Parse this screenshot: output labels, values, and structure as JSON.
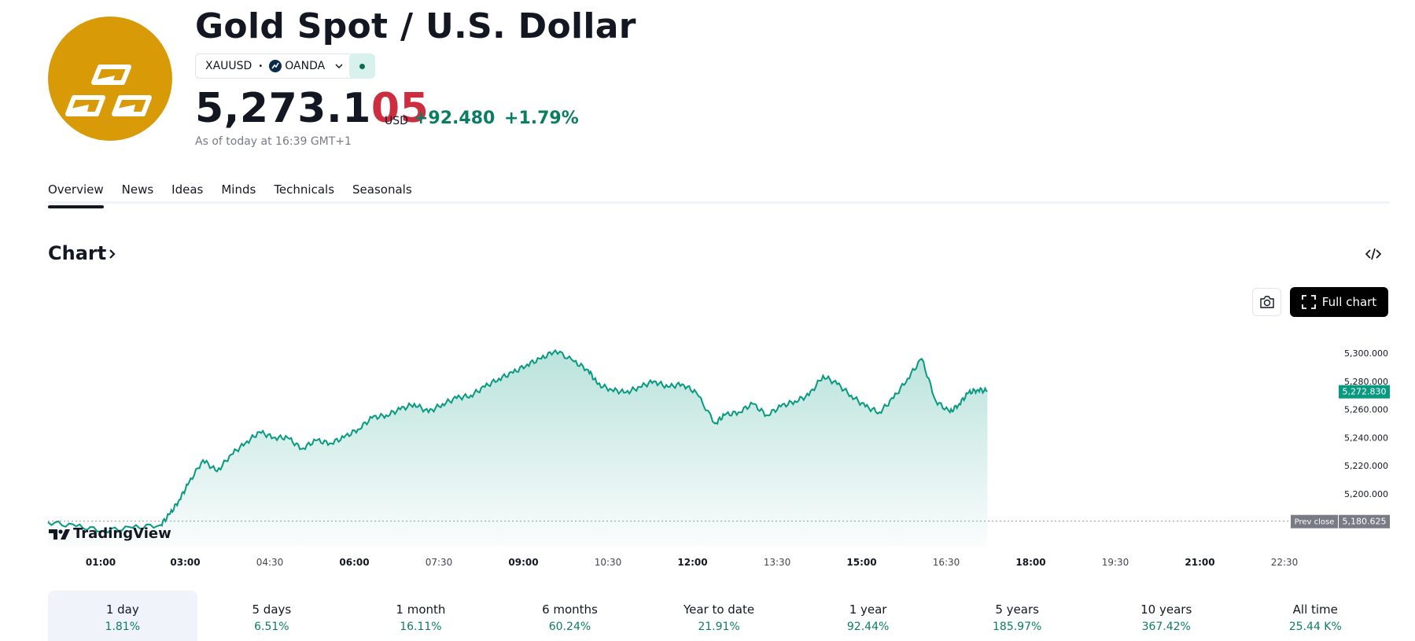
{
  "header": {
    "title": "Gold Spot / U.S. Dollar",
    "symbol": "XAUUSD",
    "exchange": "OANDA",
    "logo_icon": "gold-bars-icon",
    "price_main": "5,273.1",
    "price_tail": "05",
    "currency": "USD",
    "change": "+92.480",
    "change_pct": "+1.79%",
    "as_of": "As of today at 16:39 GMT+1"
  },
  "tabs": [
    {
      "label": "Overview",
      "active": true
    },
    {
      "label": "News"
    },
    {
      "label": "Ideas"
    },
    {
      "label": "Minds"
    },
    {
      "label": "Technicals"
    },
    {
      "label": "Seasonals"
    }
  ],
  "chart_section": {
    "heading": "Chart",
    "full_chart_label": "Full chart",
    "brand": "TradingView"
  },
  "colors": {
    "line": "#089981",
    "price_tail": "#cc2e3f",
    "positive": "#0b7d63",
    "logo": "#d99a08"
  },
  "chart_data": {
    "type": "area",
    "x_ticks": [
      "01:00",
      "03:00",
      "04:30",
      "06:00",
      "07:30",
      "09:00",
      "10:30",
      "12:00",
      "13:30",
      "15:00",
      "16:30",
      "18:00",
      "19:30",
      "21:00",
      "22:30"
    ],
    "y_ticks": [
      "5,200.000",
      "5,220.000",
      "5,240.000",
      "5,260.000",
      "5,280.000",
      "5,300.000"
    ],
    "ylim": [
      5176,
      5308
    ],
    "current_label": "5,272.830",
    "current_value": 5272.83,
    "prev_close_label": "Prev close",
    "prev_close_value_label": "5,180.625",
    "prev_close": 5180.625,
    "series": [
      {
        "x": [
          "00:00",
          "00:30",
          "01:00",
          "01:30",
          "02:00",
          "02:10",
          "02:20",
          "02:30",
          "02:45",
          "03:00",
          "03:15",
          "03:30",
          "03:45",
          "04:00",
          "04:15",
          "04:30",
          "04:45",
          "05:00",
          "05:15",
          "05:30",
          "05:45",
          "06:00",
          "06:15",
          "06:30",
          "06:45",
          "07:00",
          "07:15",
          "07:30",
          "07:45",
          "08:00",
          "08:15",
          "08:30",
          "08:45",
          "09:00",
          "09:20",
          "09:35",
          "09:45",
          "10:00",
          "10:15",
          "10:30",
          "10:45",
          "11:00",
          "11:15",
          "11:30",
          "11:50",
          "12:00",
          "12:15",
          "12:30",
          "12:45",
          "13:00",
          "13:15",
          "13:30",
          "13:45",
          "14:00",
          "14:15",
          "14:30",
          "14:45",
          "15:00",
          "15:15",
          "15:30",
          "15:45",
          "16:00",
          "16:10",
          "16:20",
          "16:30",
          "16:40"
        ],
        "values": [
          5180,
          5177,
          5174,
          5176,
          5178,
          5186,
          5196,
          5208,
          5224,
          5216,
          5228,
          5236,
          5244,
          5240,
          5240,
          5232,
          5238,
          5236,
          5240,
          5246,
          5254,
          5256,
          5260,
          5264,
          5258,
          5264,
          5268,
          5270,
          5276,
          5282,
          5286,
          5292,
          5296,
          5302,
          5294,
          5288,
          5278,
          5274,
          5272,
          5276,
          5280,
          5276,
          5278,
          5272,
          5250,
          5256,
          5258,
          5264,
          5256,
          5262,
          5266,
          5270,
          5284,
          5278,
          5270,
          5262,
          5258,
          5268,
          5282,
          5296,
          5266,
          5258,
          5264,
          5272,
          5274,
          5273
        ]
      }
    ]
  },
  "periods": [
    {
      "label": "1 day",
      "value": "1.81%",
      "active": true
    },
    {
      "label": "5 days",
      "value": "6.51%"
    },
    {
      "label": "1 month",
      "value": "16.11%"
    },
    {
      "label": "6 months",
      "value": "60.24%"
    },
    {
      "label": "Year to date",
      "value": "21.91%"
    },
    {
      "label": "1 year",
      "value": "92.44%"
    },
    {
      "label": "5 years",
      "value": "185.97%"
    },
    {
      "label": "10 years",
      "value": "367.42%"
    },
    {
      "label": "All time",
      "value": "25.44 K%"
    }
  ]
}
